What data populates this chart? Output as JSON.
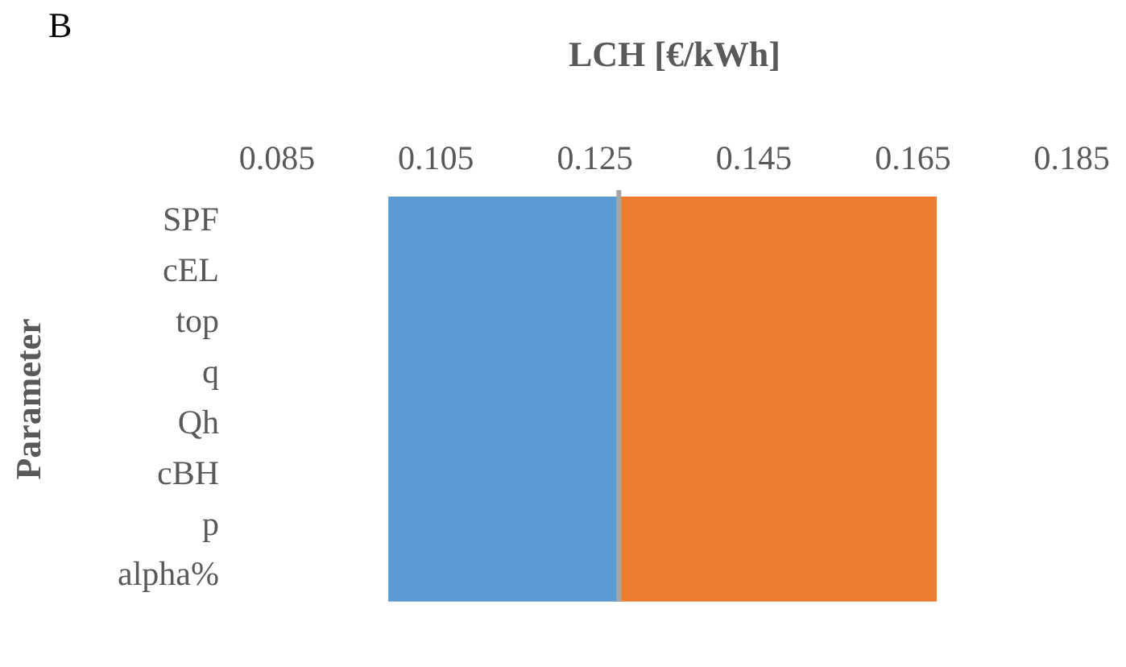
{
  "chart_data": {
    "type": "bar",
    "orientation": "horizontal",
    "xlabel": "LCH [€/kWh]",
    "ylabel": "Parameter",
    "annotations": [
      "B"
    ],
    "categories": [
      "SPF",
      "cEL",
      "top",
      "q",
      "Qh",
      "cBH",
      "p",
      "alpha%"
    ],
    "bands": [
      {
        "axis": "x",
        "from": 0.099,
        "to": 0.128,
        "color": "#5b9bd5"
      },
      {
        "axis": "x",
        "from": 0.128,
        "to": 0.168,
        "color": "#ed7d31"
      }
    ],
    "xlim": [
      0.085,
      0.185
    ],
    "xticks": [
      0.085,
      0.105,
      0.125,
      0.145,
      0.165,
      0.185
    ],
    "ref_lines": [
      {
        "axis": "x",
        "value": 0.128,
        "color": "#a5a5a5"
      }
    ],
    "grid": false,
    "legend": false
  }
}
